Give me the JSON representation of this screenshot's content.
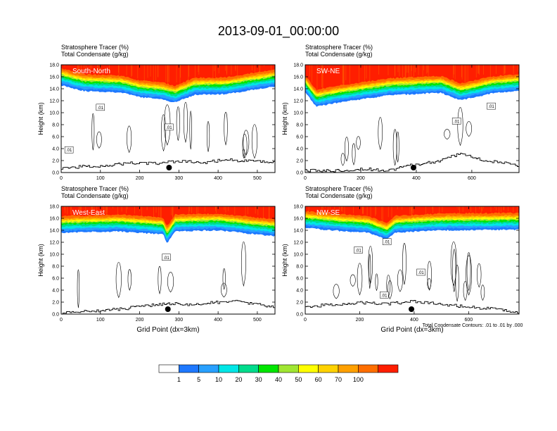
{
  "figure": {
    "title": "2013-09-01_00:00:00",
    "note": "Total Condensate Contours: .01 to .01 by .000",
    "colorbar": {
      "labels": [
        "1",
        "5",
        "10",
        "20",
        "30",
        "40",
        "50",
        "60",
        "70",
        "100"
      ],
      "colors": [
        "#ffffff",
        "#1e78ff",
        "#28a0ff",
        "#00e6e6",
        "#00dc8c",
        "#00e600",
        "#a0e632",
        "#ffff00",
        "#ffd200",
        "#ffa000",
        "#ff6e00",
        "#ff1e00"
      ],
      "units": "%"
    },
    "contour_label": ".01",
    "terrain_color": "#000000"
  },
  "chart_data": [
    {
      "type": "contour",
      "panel_label": "South-North",
      "title_line1": "Stratosphere Tracer   (%)",
      "title_line2": "Total Condensate   (g/kg)",
      "ylabel": "Height (km)",
      "xlabel": "",
      "xlim": [
        0,
        545
      ],
      "ylim": [
        0,
        18
      ],
      "xticks": [
        0,
        100,
        200,
        300,
        400,
        500
      ],
      "yticks": [
        "0.0",
        "2.0",
        "4.0",
        "6.0",
        "8.0",
        "10.0",
        "12.0",
        "14.0",
        "16.0",
        "18.0"
      ],
      "marker_x": 275,
      "tropopause_km": [
        [
          0,
          14.6
        ],
        [
          60,
          13.6
        ],
        [
          150,
          13.4
        ],
        [
          200,
          12.6
        ],
        [
          260,
          12.2
        ],
        [
          290,
          11.7
        ],
        [
          340,
          13.0
        ],
        [
          420,
          13.1
        ],
        [
          545,
          14.4
        ]
      ],
      "terrain_km": [
        [
          0,
          0.8
        ],
        [
          60,
          1.0
        ],
        [
          120,
          1.2
        ],
        [
          180,
          1.6
        ],
        [
          240,
          1.5
        ],
        [
          300,
          1.9
        ],
        [
          360,
          1.6
        ],
        [
          420,
          2.2
        ],
        [
          470,
          1.9
        ],
        [
          545,
          1.7
        ]
      ],
      "contour_labels_at": [
        [
          20,
          3.8
        ],
        [
          100,
          10.9
        ],
        [
          275,
          7.6
        ]
      ]
    },
    {
      "type": "contour",
      "panel_label": "SW-NE",
      "title_line1": "Stratosphere Tracer   (%)",
      "title_line2": "Total Condensate   (g/kg)",
      "ylabel": "Height (km)",
      "xlabel": "",
      "xlim": [
        0,
        770
      ],
      "ylim": [
        0,
        18
      ],
      "xticks": [
        0,
        200,
        400,
        600
      ],
      "yticks": [
        "0.0",
        "2.0",
        "4.0",
        "6.0",
        "8.0",
        "10.0",
        "12.0",
        "14.0",
        "16.0",
        "18.0"
      ],
      "marker_x": 390,
      "tropopause_km": [
        [
          0,
          13.4
        ],
        [
          40,
          11.0
        ],
        [
          120,
          11.7
        ],
        [
          300,
          12.9
        ],
        [
          430,
          13.2
        ],
        [
          490,
          13.3
        ],
        [
          560,
          12.1
        ],
        [
          600,
          12.5
        ],
        [
          680,
          13.3
        ],
        [
          770,
          13.6
        ]
      ],
      "terrain_km": [
        [
          0,
          0.3
        ],
        [
          100,
          0.3
        ],
        [
          200,
          0.6
        ],
        [
          300,
          0.4
        ],
        [
          380,
          1.2
        ],
        [
          470,
          1.8
        ],
        [
          560,
          3.2
        ],
        [
          640,
          2.0
        ],
        [
          700,
          1.7
        ],
        [
          770,
          1.1
        ]
      ],
      "contour_labels_at": [
        [
          545,
          8.6
        ],
        [
          670,
          11.1
        ]
      ]
    },
    {
      "type": "contour",
      "panel_label": "West-East",
      "title_line1": "Stratosphere Tracer   (%)",
      "title_line2": "Total Condensate   (g/kg)",
      "ylabel": "Height (km)",
      "xlabel": "Grid Point (dx=3km)",
      "xlim": [
        0,
        545
      ],
      "ylim": [
        0,
        18
      ],
      "xticks": [
        0,
        100,
        200,
        300,
        400,
        500
      ],
      "yticks": [
        "0.0",
        "2.0",
        "4.0",
        "6.0",
        "8.0",
        "10.0",
        "12.0",
        "14.0",
        "16.0",
        "18.0"
      ],
      "marker_x": 272,
      "tropopause_km": [
        [
          0,
          13.6
        ],
        [
          150,
          13.8
        ],
        [
          260,
          13.3
        ],
        [
          270,
          11.8
        ],
        [
          290,
          13.8
        ],
        [
          400,
          14.0
        ],
        [
          545,
          13.0
        ]
      ],
      "terrain_km": [
        [
          0,
          0.2
        ],
        [
          80,
          0.5
        ],
        [
          160,
          0.9
        ],
        [
          220,
          1.4
        ],
        [
          270,
          1.8
        ],
        [
          330,
          1.5
        ],
        [
          430,
          2.2
        ],
        [
          480,
          1.8
        ],
        [
          545,
          1.1
        ]
      ],
      "contour_labels_at": [
        [
          268,
          9.5
        ]
      ]
    },
    {
      "type": "contour",
      "panel_label": "NW-SE",
      "title_line1": "Stratosphere Tracer   (%)",
      "title_line2": "Total Condensate   (g/kg)",
      "ylabel": "Height (km)",
      "xlabel": "Grid Point (dx=3km)",
      "xlim": [
        0,
        785
      ],
      "ylim": [
        0,
        18
      ],
      "xticks": [
        0,
        200,
        400,
        600
      ],
      "yticks": [
        "0.0",
        "2.0",
        "4.0",
        "6.0",
        "8.0",
        "10.0",
        "12.0",
        "14.0",
        "16.0",
        "18.0"
      ],
      "marker_x": 390,
      "tropopause_km": [
        [
          0,
          14.4
        ],
        [
          150,
          13.8
        ],
        [
          230,
          13.6
        ],
        [
          300,
          12.4
        ],
        [
          330,
          13.6
        ],
        [
          500,
          14.0
        ],
        [
          785,
          14.1
        ]
      ],
      "terrain_km": [
        [
          0,
          1.2
        ],
        [
          100,
          1.6
        ],
        [
          200,
          1.9
        ],
        [
          300,
          1.7
        ],
        [
          400,
          2.1
        ],
        [
          500,
          1.6
        ],
        [
          600,
          1.2
        ],
        [
          700,
          0.8
        ],
        [
          785,
          0.2
        ]
      ],
      "contour_labels_at": [
        [
          195,
          10.7
        ],
        [
          300,
          12.1
        ],
        [
          290,
          3.2
        ],
        [
          425,
          7.0
        ]
      ]
    }
  ]
}
